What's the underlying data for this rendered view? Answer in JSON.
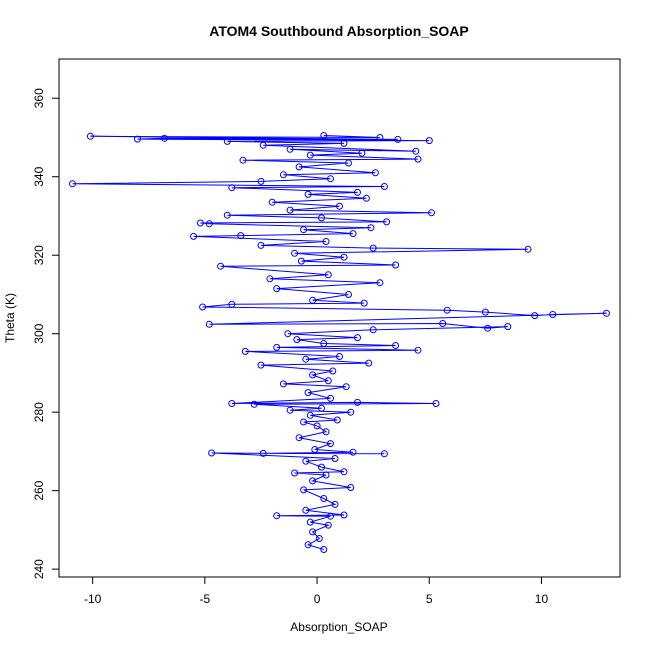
{
  "chart_data": {
    "type": "scatter",
    "title": "ATOM4 Southbound Absorption_SOAP",
    "xlabel": "Absorption_SOAP",
    "ylabel": "Theta (K)",
    "xlim": [
      -11.5,
      13.5
    ],
    "ylim": [
      238,
      370
    ],
    "xticks": [
      -10,
      -5,
      0,
      5,
      10
    ],
    "yticks": [
      240,
      260,
      280,
      300,
      320,
      340,
      360
    ],
    "grid": false,
    "legend": "none",
    "series_color": "#0000ff",
    "marker": "open-circle",
    "connected": true,
    "series": [
      {
        "points": [
          [
            0.3,
            245.0
          ],
          [
            -0.4,
            246.2
          ],
          [
            0.1,
            247.8
          ],
          [
            -0.2,
            249.5
          ],
          [
            0.5,
            251.2
          ],
          [
            -0.3,
            252.0
          ],
          [
            0.6,
            253.5
          ],
          [
            -1.8,
            253.6
          ],
          [
            1.2,
            253.8
          ],
          [
            -0.5,
            255.0
          ],
          [
            0.8,
            256.5
          ],
          [
            0.3,
            258.0
          ],
          [
            -0.6,
            260.2
          ],
          [
            1.5,
            260.8
          ],
          [
            -0.2,
            262.5
          ],
          [
            0.4,
            264.0
          ],
          [
            -1.0,
            264.5
          ],
          [
            1.2,
            264.8
          ],
          [
            0.2,
            266.0
          ],
          [
            -0.5,
            267.5
          ],
          [
            0.8,
            268.2
          ],
          [
            -4.7,
            269.6
          ],
          [
            3.0,
            269.4
          ],
          [
            -2.4,
            269.5
          ],
          [
            1.6,
            269.8
          ],
          [
            -0.1,
            270.5
          ],
          [
            0.6,
            272.0
          ],
          [
            -0.8,
            273.5
          ],
          [
            0.4,
            275.0
          ],
          [
            0.0,
            276.5
          ],
          [
            -0.6,
            277.5
          ],
          [
            0.9,
            278.0
          ],
          [
            -0.3,
            279.2
          ],
          [
            1.5,
            280.0
          ],
          [
            -1.2,
            280.5
          ],
          [
            0.2,
            281.0
          ],
          [
            -2.8,
            282.0
          ],
          [
            5.3,
            282.2
          ],
          [
            1.8,
            282.5
          ],
          [
            -3.8,
            282.2
          ],
          [
            0.6,
            283.5
          ],
          [
            -0.4,
            285.0
          ],
          [
            1.3,
            286.5
          ],
          [
            -1.5,
            287.2
          ],
          [
            0.5,
            288.0
          ],
          [
            -0.2,
            289.5
          ],
          [
            0.7,
            290.5
          ],
          [
            -2.5,
            292.0
          ],
          [
            2.3,
            292.5
          ],
          [
            -0.5,
            293.5
          ],
          [
            1.0,
            294.2
          ],
          [
            -3.2,
            295.5
          ],
          [
            4.5,
            295.8
          ],
          [
            -1.8,
            296.5
          ],
          [
            3.5,
            297.0
          ],
          [
            0.3,
            297.5
          ],
          [
            -0.9,
            298.5
          ],
          [
            1.8,
            299.0
          ],
          [
            -1.3,
            300.0
          ],
          [
            2.5,
            301.0
          ],
          [
            8.5,
            301.8
          ],
          [
            7.6,
            301.4
          ],
          [
            5.6,
            302.6
          ],
          [
            -4.8,
            302.4
          ],
          [
            12.9,
            305.2
          ],
          [
            10.5,
            304.9
          ],
          [
            9.7,
            304.6
          ],
          [
            7.5,
            305.5
          ],
          [
            5.8,
            306.0
          ],
          [
            -5.1,
            306.8
          ],
          [
            -3.8,
            307.5
          ],
          [
            2.1,
            307.8
          ],
          [
            -0.2,
            308.5
          ],
          [
            1.4,
            310.0
          ],
          [
            -1.8,
            311.5
          ],
          [
            2.8,
            313.0
          ],
          [
            -2.1,
            314.0
          ],
          [
            0.5,
            315.0
          ],
          [
            -4.3,
            317.2
          ],
          [
            3.5,
            317.5
          ],
          [
            -0.7,
            318.5
          ],
          [
            1.2,
            319.5
          ],
          [
            -1.0,
            320.5
          ],
          [
            9.4,
            321.5
          ],
          [
            2.5,
            321.8
          ],
          [
            -2.5,
            322.5
          ],
          [
            0.4,
            323.5
          ],
          [
            -5.5,
            324.8
          ],
          [
            -3.4,
            325.0
          ],
          [
            1.6,
            325.5
          ],
          [
            -0.6,
            326.5
          ],
          [
            2.4,
            327.0
          ],
          [
            -4.8,
            328.0
          ],
          [
            -5.2,
            328.2
          ],
          [
            3.1,
            328.5
          ],
          [
            0.2,
            329.5
          ],
          [
            -4.0,
            330.2
          ],
          [
            5.1,
            330.8
          ],
          [
            -1.2,
            331.5
          ],
          [
            1.0,
            332.5
          ],
          [
            -2.0,
            333.5
          ],
          [
            2.2,
            334.5
          ],
          [
            -0.4,
            335.5
          ],
          [
            1.8,
            336.0
          ],
          [
            -3.8,
            337.2
          ],
          [
            3.0,
            337.5
          ],
          [
            -10.9,
            338.2
          ],
          [
            -2.5,
            338.8
          ],
          [
            0.6,
            339.5
          ],
          [
            -1.5,
            340.5
          ],
          [
            2.6,
            341.0
          ],
          [
            -0.8,
            342.5
          ],
          [
            1.4,
            343.5
          ],
          [
            -3.3,
            344.2
          ],
          [
            4.5,
            344.5
          ],
          [
            -0.3,
            345.5
          ],
          [
            2.0,
            346.0
          ],
          [
            -1.2,
            347.0
          ],
          [
            4.4,
            346.5
          ],
          [
            -2.4,
            348.0
          ],
          [
            1.2,
            348.5
          ],
          [
            -4.0,
            349.0
          ],
          [
            5.0,
            349.2
          ],
          [
            -8.0,
            349.6
          ],
          [
            -6.8,
            349.8
          ],
          [
            3.6,
            349.5
          ],
          [
            -10.1,
            350.3
          ],
          [
            2.8,
            350.0
          ],
          [
            0.3,
            350.5
          ]
        ]
      }
    ]
  }
}
